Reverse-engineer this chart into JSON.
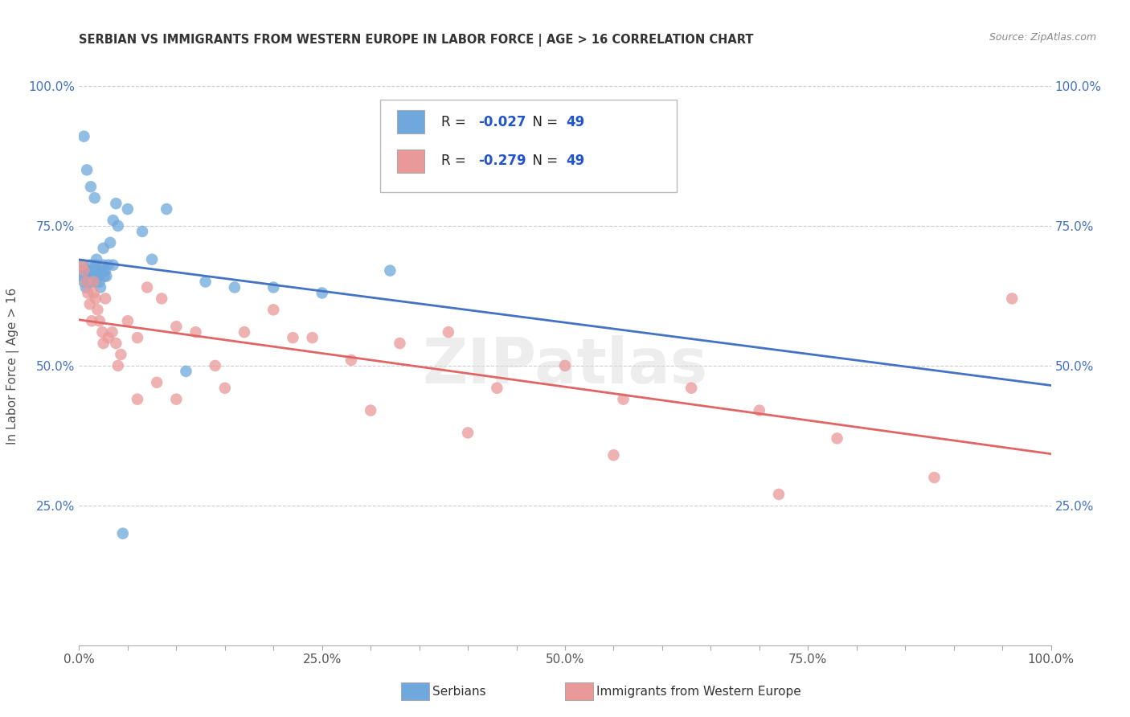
{
  "title": "SERBIAN VS IMMIGRANTS FROM WESTERN EUROPE IN LABOR FORCE | AGE > 16 CORRELATION CHART",
  "source": "Source: ZipAtlas.com",
  "ylabel": "In Labor Force | Age > 16",
  "xlim": [
    0.0,
    1.0
  ],
  "ylim": [
    0.0,
    1.0
  ],
  "xtick_labels": [
    "0.0%",
    "",
    "",
    "",
    "",
    "25.0%",
    "",
    "",
    "",
    "",
    "50.0%",
    "",
    "",
    "",
    "",
    "75.0%",
    "",
    "",
    "",
    "",
    "100.0%"
  ],
  "xtick_vals": [
    0.0,
    0.05,
    0.1,
    0.15,
    0.2,
    0.25,
    0.3,
    0.35,
    0.4,
    0.45,
    0.5,
    0.55,
    0.6,
    0.65,
    0.7,
    0.75,
    0.8,
    0.85,
    0.9,
    0.95,
    1.0
  ],
  "ytick_labels": [
    "25.0%",
    "50.0%",
    "75.0%",
    "100.0%"
  ],
  "ytick_vals": [
    0.25,
    0.5,
    0.75,
    1.0
  ],
  "serbian_color": "#6fa8dc",
  "immigrant_color": "#ea9999",
  "serbian_line_color": "#4472c4",
  "immigrant_line_color": "#e06666",
  "R_serbian": -0.027,
  "N_serbian": 49,
  "R_immigrant": -0.279,
  "N_immigrant": 49,
  "legend_label_1": "Serbians",
  "legend_label_2": "Immigrants from Western Europe",
  "watermark": "ZIPatlas",
  "serbian_x": [
    0.002,
    0.003,
    0.004,
    0.005,
    0.006,
    0.007,
    0.008,
    0.009,
    0.01,
    0.011,
    0.012,
    0.013,
    0.014,
    0.015,
    0.016,
    0.017,
    0.018,
    0.019,
    0.02,
    0.021,
    0.022,
    0.024,
    0.025,
    0.026,
    0.027,
    0.028,
    0.03,
    0.032,
    0.035,
    0.038,
    0.04,
    0.05,
    0.065,
    0.075,
    0.09,
    0.11,
    0.13,
    0.16,
    0.2,
    0.25,
    0.32,
    0.005,
    0.008,
    0.012,
    0.016,
    0.02,
    0.025,
    0.035,
    0.045
  ],
  "serbian_y": [
    0.67,
    0.66,
    0.68,
    0.65,
    0.66,
    0.64,
    0.67,
    0.65,
    0.66,
    0.67,
    0.68,
    0.65,
    0.67,
    0.66,
    0.65,
    0.68,
    0.69,
    0.67,
    0.66,
    0.65,
    0.64,
    0.67,
    0.68,
    0.66,
    0.67,
    0.66,
    0.68,
    0.72,
    0.76,
    0.79,
    0.75,
    0.78,
    0.74,
    0.69,
    0.78,
    0.49,
    0.65,
    0.64,
    0.64,
    0.63,
    0.67,
    0.91,
    0.85,
    0.82,
    0.8,
    0.67,
    0.71,
    0.68,
    0.2
  ],
  "immigrant_x": [
    0.003,
    0.005,
    0.007,
    0.009,
    0.011,
    0.013,
    0.015,
    0.017,
    0.019,
    0.021,
    0.024,
    0.027,
    0.03,
    0.034,
    0.038,
    0.043,
    0.05,
    0.06,
    0.07,
    0.085,
    0.1,
    0.12,
    0.14,
    0.17,
    0.2,
    0.24,
    0.28,
    0.33,
    0.38,
    0.43,
    0.5,
    0.56,
    0.63,
    0.7,
    0.78,
    0.88,
    0.96,
    0.015,
    0.025,
    0.04,
    0.06,
    0.08,
    0.1,
    0.15,
    0.22,
    0.3,
    0.4,
    0.55,
    0.72
  ],
  "immigrant_y": [
    0.68,
    0.67,
    0.65,
    0.63,
    0.61,
    0.58,
    0.65,
    0.62,
    0.6,
    0.58,
    0.56,
    0.62,
    0.55,
    0.56,
    0.54,
    0.52,
    0.58,
    0.55,
    0.64,
    0.62,
    0.57,
    0.56,
    0.5,
    0.56,
    0.6,
    0.55,
    0.51,
    0.54,
    0.56,
    0.46,
    0.5,
    0.44,
    0.46,
    0.42,
    0.37,
    0.3,
    0.62,
    0.63,
    0.54,
    0.5,
    0.44,
    0.47,
    0.44,
    0.46,
    0.55,
    0.42,
    0.38,
    0.34,
    0.27
  ]
}
